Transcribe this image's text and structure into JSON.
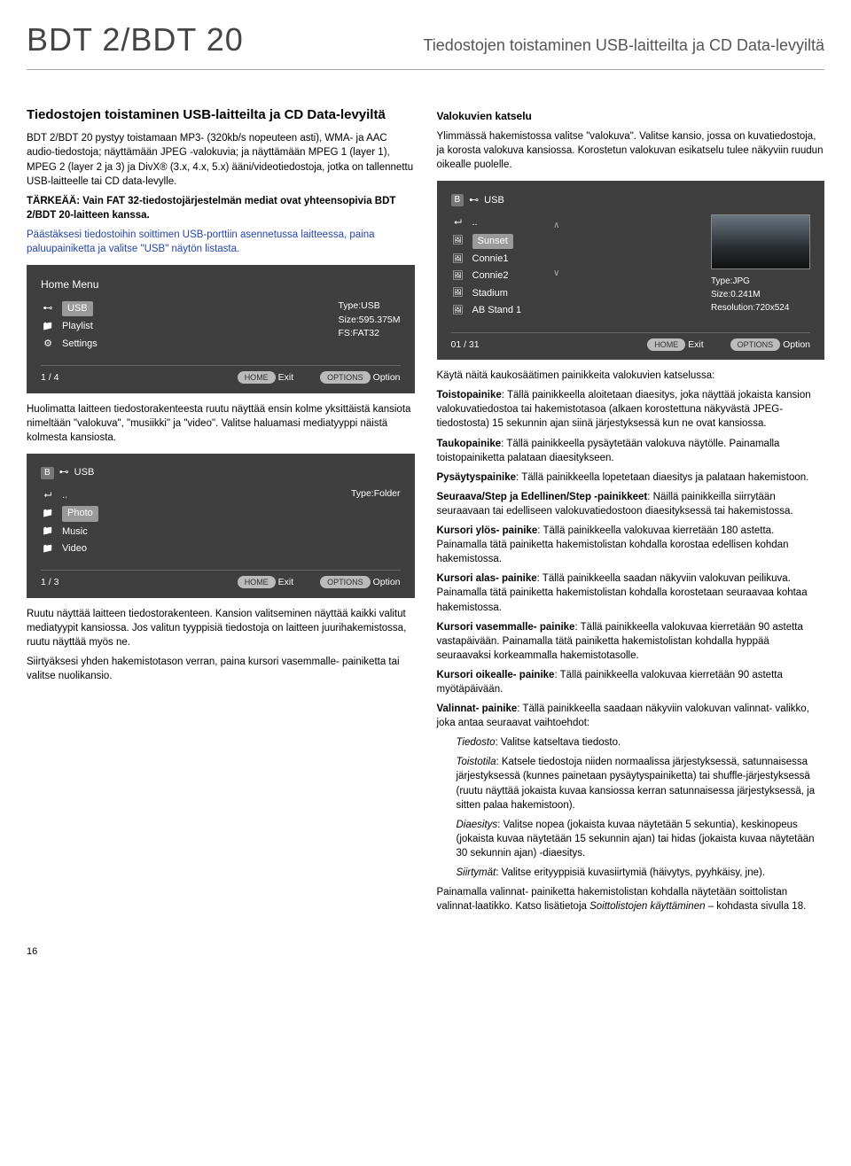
{
  "header": {
    "model": "BDT 2/BDT 20",
    "title": "Tiedostojen toistaminen USB-laitteilta ja CD Data-levyiltä"
  },
  "left": {
    "h2": "Tiedostojen toistaminen USB-laitteilta ja CD Data-levyiltä",
    "p1": "BDT 2/BDT 20 pystyy toistamaan MP3- (320kb/s nopeuteen asti), WMA- ja AAC audio-tiedostoja; näyttämään JPEG -valokuvia; ja näyttämään MPEG 1 (layer 1), MPEG 2 (layer 2 ja 3) ja DivX® (3.x, 4.x, 5.x) ääni/videotiedostoja, jotka on tallennettu USB-laitteelle tai CD data-levylle.",
    "p2": "TÄRKEÄÄ: Vain FAT 32-tiedostojärjestelmän mediat ovat yhteensopivia BDT 2/BDT 20-laitteen kanssa.",
    "p3": "Päästäksesi tiedostoihin soittimen USB-porttiin asennetussa laitteessa, paina paluupainiketta ja valitse \"USB\" näytön listasta.",
    "p4": "Huolimatta laitteen tiedostorakenteesta ruutu näyttää ensin kolme yksittäistä kansiota nimeltään \"valokuva\", \"musiikki\" ja \"video\". Valitse haluamasi mediatyyppi näistä kolmesta kansiosta.",
    "p5": "Ruutu näyttää laitteen tiedostorakenteen. Kansion valitseminen näyttää kaikki valitut mediatyypit kansiossa. Jos valitun tyyppisiä tiedostoja on laitteen juurihakemistossa, ruutu näyttää myös ne.",
    "p6": "Siirtyäksesi yhden hakemistotason verran, paina kursori vasemmalle- painiketta tai valitse nuolikansio."
  },
  "screen_home": {
    "title": "Home Menu",
    "items": [
      {
        "label": "USB",
        "icon": "usb-icon",
        "selected": true
      },
      {
        "label": "Playlist",
        "icon": "folder-icon"
      },
      {
        "label": "Settings",
        "icon": "gear-icon"
      }
    ],
    "meta": [
      "Type:USB",
      "Size:595.375M",
      "FS:FAT32"
    ],
    "footer": {
      "count": "1 / 4",
      "home": "Exit",
      "option": "Option"
    }
  },
  "screen_usb_folders": {
    "title": "USB",
    "items": [
      {
        "label": "..",
        "icon": "up-icon"
      },
      {
        "label": "Photo",
        "icon": "folder-icon",
        "selected": true
      },
      {
        "label": "Music",
        "icon": "folder-icon"
      },
      {
        "label": "Video",
        "icon": "folder-icon"
      }
    ],
    "meta": [
      "Type:Folder"
    ],
    "footer": {
      "count": "1 / 3",
      "home": "Exit",
      "option": "Option"
    }
  },
  "right": {
    "h3a": "Valokuvien katselu",
    "p_r1": "Ylimmässä hakemistossa valitse \"valokuva\". Valitse kansio, jossa on kuvatiedostoja, ja korosta valokuva kansiossa. Korostetun valokuvan esikatselu tulee näkyviin ruudun oikealle puolelle.",
    "p_r2": "Käytä näitä kaukosäätimen painikkeita valokuvien katselussa:",
    "btns": [
      {
        "term": "Toistopainike",
        "text": ": Tällä painikkeella aloitetaan diaesitys, joka näyttää jokaista kansion valokuvatiedostoa tai hakemistotasoa (alkaen korostettuna näkyvästä JPEG-tiedostosta) 15 sekunnin ajan siinä järjestyksessä kun ne ovat kansiossa."
      },
      {
        "term": "Taukopainike",
        "text": ": Tällä painikkeella pysäytetään valokuva näytölle. Painamalla toistopainiketta palataan diaesitykseen."
      },
      {
        "term": "Pysäytyspainike",
        "text": ": Tällä painikkeella lopetetaan diaesitys ja palataan hakemistoon."
      },
      {
        "term": "Seuraava/Step ja Edellinen/Step -painikkeet",
        "text": ": Näillä painikkeilla siirrytään seuraavaan tai edelliseen valokuvatiedostoon diaesityksessä tai hakemistossa."
      },
      {
        "term": "Kursori ylös- painike",
        "text": ": Tällä painikkeella valokuvaa kierretään 180 astetta. Painamalla tätä painiketta hakemistolistan kohdalla korostaa edellisen kohdan hakemistossa."
      },
      {
        "term": "Kursori alas- painike",
        "text": ": Tällä painikkeella saadan näkyviin valokuvan peilikuva. Painamalla tätä painiketta hakemistolistan kohdalla korostetaan seuraavaa kohtaa hakemistossa."
      },
      {
        "term": "Kursori vasemmalle- painike",
        "text": ": Tällä painikkeella valokuvaa kierretään 90 astetta vastapäivään. Painamalla tätä painiketta hakemistolistan kohdalla hyppää seuraavaksi korkeammalla hakemistotasolle."
      },
      {
        "term": "Kursori oikealle- painike",
        "text": ": Tällä painikkeella valokuvaa kierretään 90 astetta myötäpäivään."
      },
      {
        "term": "Valinnat- painike",
        "text": ": Tällä painikkeella saadaan näkyviin valokuvan valinnat- valikko, joka antaa seuraavat vaihtoehdot:"
      }
    ],
    "opts": [
      {
        "term": "Tiedosto",
        "text": ": Valitse katseltava tiedosto."
      },
      {
        "term": "Toistotila",
        "text": ": Katsele tiedostoja niiden normaalissa järjestyksessä, satunnaisessa järjestyksessä (kunnes painetaan pysäytyspainiketta) tai shuffle-järjestyksessä (ruutu näyttää jokaista kuvaa kansiossa kerran satunnaisessa järjestyksessä, ja sitten palaa hakemistoon)."
      },
      {
        "term": "Diaesitys",
        "text": ": Valitse nopea (jokaista kuvaa näytetään 5 sekuntia), keskinopeus (jokaista kuvaa näytetään 15 sekunnin ajan) tai hidas (jokaista kuvaa näytetään 30 sekunnin ajan) -diaesitys."
      },
      {
        "term": "Siirtymät",
        "text": ": Valitse erityyppisiä kuvasiirtymiä (häivytys, pyyhkäisy, jne)."
      }
    ],
    "p_r3a": "Painamalla valinnat- painiketta hakemistolistan kohdalla näytetään soittolistan valinnat-laatikko. Katso lisätietoja ",
    "p_r3b": "Soittolistojen käyttäminen",
    "p_r3c": " – kohdasta sivulla 18."
  },
  "screen_photos": {
    "title": "USB",
    "items": [
      {
        "label": "..",
        "icon": "up-icon"
      },
      {
        "label": "Sunset",
        "icon": "img-icon",
        "selected": true
      },
      {
        "label": "Connie1",
        "icon": "img-icon"
      },
      {
        "label": "Connie2",
        "icon": "img-icon"
      },
      {
        "label": "Stadium",
        "icon": "img-icon"
      },
      {
        "label": "AB Stand 1",
        "icon": "img-icon"
      }
    ],
    "meta": [
      "Type:JPG",
      "Size:0.241M",
      "Resolution:720x524"
    ],
    "footer": {
      "count": "01 / 31",
      "home": "Exit",
      "option": "Option"
    }
  },
  "page": "16"
}
